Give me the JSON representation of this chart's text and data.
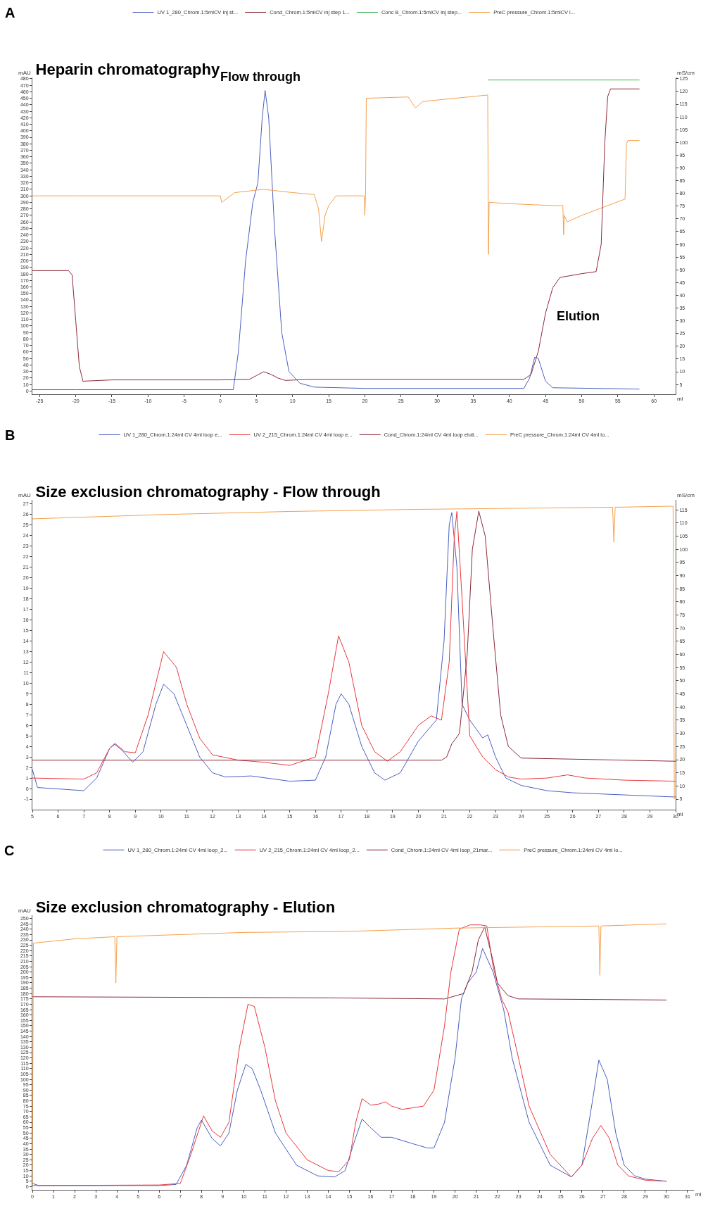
{
  "chart_data": [
    {
      "type": "line",
      "title": "Heparin chromatography",
      "xlabel": "ml",
      "ylabel": "mAU",
      "y2label": "mS/cm",
      "legend": "top",
      "grid": false,
      "marker": "none",
      "line_style": "solid",
      "annotations": [
        "A",
        "Flow through",
        "Elution"
      ],
      "xlim": [
        -26,
        63
      ],
      "xticks": [
        -25,
        -20,
        -15,
        -10,
        -5,
        0,
        5,
        10,
        15,
        20,
        25,
        30,
        35,
        40,
        45,
        50,
        55,
        60
      ],
      "ylim": [
        -5,
        482
      ],
      "yticks": [
        0,
        10,
        20,
        30,
        40,
        50,
        60,
        70,
        80,
        90,
        100,
        110,
        120,
        130,
        140,
        150,
        160,
        170,
        180,
        190,
        200,
        210,
        220,
        230,
        240,
        250,
        260,
        270,
        280,
        290,
        300,
        310,
        320,
        330,
        340,
        350,
        360,
        370,
        380,
        390,
        400,
        410,
        420,
        430,
        440,
        450,
        460,
        470,
        480
      ],
      "y2lim": [
        1.17,
        125.5
      ],
      "y2ticks": [
        5,
        10,
        15,
        20,
        25,
        30,
        35,
        40,
        45,
        50,
        55,
        60,
        65,
        70,
        75,
        80,
        85,
        90,
        95,
        100,
        105,
        110,
        115,
        120,
        125
      ],
      "series": [
        {
          "name": "UV 1_280_Chrom.1:5mlCV inj st...",
          "color": "#4a5fc1",
          "x": [
            -26,
            -20,
            0,
            1.8,
            2.5,
            3.5,
            4.5,
            5.2,
            5.8,
            6.2,
            6.7,
            7.5,
            8.5,
            9.5,
            11,
            13,
            20,
            42,
            42.8,
            43.5,
            44,
            45,
            46,
            58
          ],
          "values": [
            2,
            2,
            2,
            2,
            60,
            200,
            290,
            320,
            420,
            462,
            420,
            250,
            90,
            30,
            12,
            6,
            4,
            4,
            20,
            52,
            50,
            15,
            5,
            3
          ]
        },
        {
          "name": "Cond_Chrom.1:5mlCV inj step 1...",
          "color": "#8b2a3a",
          "axis": "y2",
          "x": [
            -26,
            -21,
            -20.5,
            -20,
            -19.5,
            -19,
            -15,
            0,
            4,
            5,
            6,
            7,
            8,
            9,
            12,
            42,
            43,
            44,
            45,
            46,
            47,
            50,
            52,
            52.7,
            53.2,
            53.6,
            54,
            58
          ],
          "values": [
            49.7,
            49.7,
            48,
            30,
            12,
            6.3,
            6.8,
            6.8,
            7,
            8.5,
            10,
            9,
            7.5,
            6.6,
            7,
            7,
            9,
            18,
            33,
            43,
            47,
            48.5,
            49.3,
            60,
            100,
            118,
            121,
            121
          ]
        },
        {
          "name": "Conc B_Chrom.1:5mlCV inj step...",
          "color": "#3cb34a",
          "axis": "y2",
          "x": [
            37,
            58
          ],
          "values": [
            124.5,
            124.5
          ]
        },
        {
          "name": "PreC pressure_Chrom.1:5mlCV i...",
          "color": "#f5a04a",
          "x": [
            -26,
            -20,
            0,
            0.2,
            2,
            6,
            10,
            13,
            13.6,
            14,
            14.5,
            15,
            16,
            19.9,
            20,
            20.1,
            20.2,
            26,
            27,
            28,
            37,
            37.05,
            37.1,
            37.2,
            40,
            46,
            47.4,
            47.5,
            47.6,
            48,
            50,
            56,
            56.2,
            56.4,
            58
          ],
          "values": [
            300,
            300,
            300,
            290,
            305,
            310,
            305,
            302,
            280,
            230,
            270,
            285,
            300,
            300,
            270,
            300,
            450,
            452,
            435,
            445,
            455,
            340,
            210,
            290,
            288,
            285,
            285,
            240,
            270,
            260,
            270,
            295,
            380,
            385,
            385
          ]
        }
      ]
    },
    {
      "type": "line",
      "title": "Size exclusion chromatography - Flow through",
      "xlabel": "ml",
      "ylabel": "mAU",
      "y2label": "mS/cm",
      "legend": "top",
      "grid": false,
      "marker": "none",
      "line_style": "solid",
      "annotations": [
        "B"
      ],
      "xlim": [
        5,
        30
      ],
      "xticks": [
        5,
        6,
        7,
        8,
        9,
        10,
        11,
        12,
        13,
        14,
        15,
        16,
        17,
        18,
        19,
        20,
        21,
        22,
        23,
        24,
        25,
        26,
        27,
        28,
        29,
        30
      ],
      "ylim": [
        -2,
        27.4
      ],
      "yticks": [
        -1,
        0,
        1,
        2,
        3,
        4,
        5,
        6,
        7,
        8,
        9,
        10,
        11,
        12,
        13,
        14,
        15,
        16,
        17,
        18,
        19,
        20,
        21,
        22,
        23,
        24,
        25,
        26,
        27
      ],
      "y2lim": [
        0.99,
        118.8
      ],
      "y2ticks": [
        5,
        10,
        15,
        20,
        25,
        30,
        35,
        40,
        45,
        50,
        55,
        60,
        65,
        70,
        75,
        80,
        85,
        90,
        95,
        100,
        105,
        110,
        115
      ],
      "series": [
        {
          "name": "UV 1_280_Chrom.1:24ml CV 4ml loop e...",
          "color": "#4a5fc1",
          "x": [
            5,
            5.2,
            7,
            7.5,
            8,
            8.2,
            8.5,
            8.9,
            9.3,
            9.8,
            10.1,
            10.5,
            11,
            11.5,
            12,
            12.5,
            13.5,
            15,
            16,
            16.4,
            16.8,
            17,
            17.3,
            17.8,
            18.3,
            18.7,
            19.3,
            20,
            20.7,
            21,
            21.2,
            21.3,
            21.5,
            21.7,
            22,
            22.5,
            22.7,
            23,
            23.4,
            24,
            25,
            26,
            28,
            30
          ],
          "values": [
            1.8,
            0.1,
            -0.2,
            1,
            3.8,
            4.2,
            3.6,
            2.5,
            3.5,
            8,
            9.9,
            9,
            6,
            3,
            1.5,
            1.1,
            1.2,
            0.7,
            0.8,
            3,
            8,
            9,
            8,
            4,
            1.5,
            0.8,
            1.5,
            4.5,
            6.5,
            14,
            25,
            26.2,
            21,
            8,
            6.5,
            4.8,
            5.1,
            3,
            1,
            0.3,
            -0.2,
            -0.4,
            -0.6,
            -0.8
          ]
        },
        {
          "name": "UV 2_215_Chrom.1:24ml CV 4ml loop e...",
          "color": "#e8383d",
          "x": [
            5,
            7,
            7.5,
            8,
            8.2,
            8.6,
            9,
            9.5,
            10.1,
            10.6,
            11,
            11.5,
            12,
            13,
            14,
            15,
            16,
            16.5,
            16.9,
            17.3,
            17.8,
            18.3,
            18.8,
            19.3,
            20,
            20.5,
            20.9,
            21.2,
            21.4,
            21.5,
            21.7,
            22,
            22.5,
            23,
            23.5,
            24,
            25,
            25.8,
            26.5,
            28,
            30
          ],
          "values": [
            1,
            0.9,
            1.5,
            3.8,
            4.3,
            3.5,
            3.4,
            7,
            13,
            11.5,
            8,
            4.8,
            3.2,
            2.7,
            2.5,
            2.2,
            3,
            9,
            14.5,
            12,
            6,
            3.5,
            2.6,
            3.5,
            6,
            6.9,
            6.5,
            12,
            24,
            26.3,
            18,
            5,
            3,
            1.8,
            1.1,
            0.9,
            1,
            1.3,
            1,
            0.8,
            0.7
          ]
        },
        {
          "name": "Cond_Chrom.1:24ml CV 4ml loop eluti...",
          "color": "#8b2a3a",
          "axis": "y2",
          "x": [
            5,
            20.9,
            21.1,
            21.3,
            21.6,
            21.9,
            22.1,
            22.35,
            22.6,
            22.9,
            23.2,
            23.5,
            24,
            30
          ],
          "values": [
            19.8,
            19.8,
            21,
            26,
            30,
            60,
            100,
            114.5,
            105,
            70,
            37,
            25,
            20.6,
            19.4
          ]
        },
        {
          "name": "PreC pressure_Chrom.1:24ml CV 4ml lo...",
          "color": "#f5a04a",
          "x": [
            5,
            10,
            15,
            20,
            27.55,
            27.6,
            27.65,
            29.9,
            29.95
          ],
          "values": [
            25.6,
            26,
            26.3,
            26.5,
            26.7,
            23.4,
            26.7,
            26.8,
            -1
          ]
        }
      ]
    },
    {
      "type": "line",
      "title": "Size exclusion chromatography - Elution",
      "xlabel": "ml",
      "ylabel": "mAU",
      "legend": "top",
      "grid": false,
      "marker": "none",
      "line_style": "solid",
      "annotations": [
        "C"
      ],
      "xlim": [
        0,
        31.3
      ],
      "xticks": [
        0,
        1,
        2,
        3,
        4,
        5,
        6,
        7,
        8,
        9,
        10,
        11,
        12,
        13,
        14,
        15,
        16,
        17,
        18,
        19,
        20,
        21,
        22,
        23,
        24,
        25,
        26,
        27,
        28,
        29,
        30,
        31
      ],
      "ylim": [
        -3,
        253
      ],
      "yticks": [
        0,
        5,
        10,
        15,
        20,
        25,
        30,
        35,
        40,
        45,
        50,
        55,
        60,
        65,
        70,
        75,
        80,
        85,
        90,
        95,
        100,
        105,
        110,
        115,
        120,
        125,
        130,
        135,
        140,
        145,
        150,
        155,
        160,
        165,
        170,
        175,
        180,
        185,
        190,
        195,
        200,
        205,
        210,
        215,
        220,
        225,
        230,
        235,
        240,
        245,
        250
      ],
      "series": [
        {
          "name": "UV 1_280_Chrom.1:24ml CV 4ml loop_2...",
          "color": "#4a5fc1",
          "x": [
            0,
            0.3,
            5,
            6,
            6.8,
            7.3,
            7.8,
            8,
            8.5,
            8.9,
            9.3,
            9.7,
            10.1,
            10.4,
            10.8,
            11.5,
            12.5,
            13.5,
            14.3,
            14.8,
            15.2,
            15.6,
            16,
            16.5,
            17,
            18,
            18.7,
            19,
            19.5,
            20,
            20.3,
            20.6,
            21,
            21.3,
            21.8,
            22.3,
            22.7,
            23.5,
            24.5,
            25.5,
            26,
            26.5,
            26.8,
            27.2,
            27.6,
            28,
            28.5,
            29,
            30
          ],
          "values": [
            3,
            1,
            1,
            1,
            2,
            20,
            55,
            62,
            45,
            38,
            50,
            90,
            114,
            110,
            90,
            50,
            20,
            10,
            9,
            15,
            40,
            63,
            55,
            46,
            46,
            40,
            36,
            36,
            60,
            120,
            175,
            190,
            200,
            222,
            200,
            165,
            120,
            60,
            20,
            9,
            20,
            80,
            118,
            100,
            50,
            20,
            10,
            7,
            5
          ]
        },
        {
          "name": "UV 2_215_Chrom.1:24ml CV 4ml loop_2...",
          "color": "#e8383d",
          "x": [
            0,
            6,
            7,
            7.5,
            8,
            8.1,
            8.5,
            8.9,
            9.3,
            9.8,
            10.2,
            10.5,
            11,
            11.5,
            12,
            13,
            14,
            14.5,
            15,
            15.3,
            15.6,
            16,
            16.4,
            16.7,
            17,
            17.5,
            18.5,
            19,
            19.5,
            19.8,
            20.2,
            20.7,
            21.2,
            21.5,
            21.8,
            22.2,
            22.5,
            23,
            23.5,
            24.5,
            25.5,
            26,
            26.5,
            26.9,
            27.3,
            27.7,
            28.2,
            29,
            30
          ],
          "values": [
            1,
            1.5,
            3,
            30,
            60,
            66,
            52,
            46,
            60,
            130,
            170,
            168,
            130,
            80,
            50,
            25,
            15,
            14,
            25,
            60,
            82,
            76,
            77,
            79,
            75,
            72,
            75,
            90,
            150,
            200,
            240,
            244,
            244,
            243,
            205,
            175,
            163,
            120,
            75,
            30,
            9,
            20,
            45,
            57,
            45,
            20,
            10,
            6,
            5
          ]
        },
        {
          "name": "Cond_Chrom.1:24ml CV 4ml loop_21mar...",
          "color": "#8b2a3a",
          "x": [
            0,
            14,
            19.5,
            20.4,
            20.8,
            21.1,
            21.4,
            21.8,
            22,
            22.5,
            23,
            30
          ],
          "values": [
            177,
            176,
            175,
            180,
            200,
            230,
            242,
            210,
            190,
            178,
            175,
            174
          ]
        },
        {
          "name": "PreC pressure_Chrom.1:24ml CV 4ml lo...",
          "color": "#f5a04a",
          "x": [
            0,
            0.05,
            2,
            3.9,
            3.95,
            4,
            10,
            15,
            20,
            26.8,
            26.85,
            26.9,
            30
          ],
          "values": [
            0,
            227,
            231,
            233,
            190,
            233,
            237,
            238,
            241,
            243,
            197,
            243,
            245
          ]
        }
      ]
    }
  ]
}
